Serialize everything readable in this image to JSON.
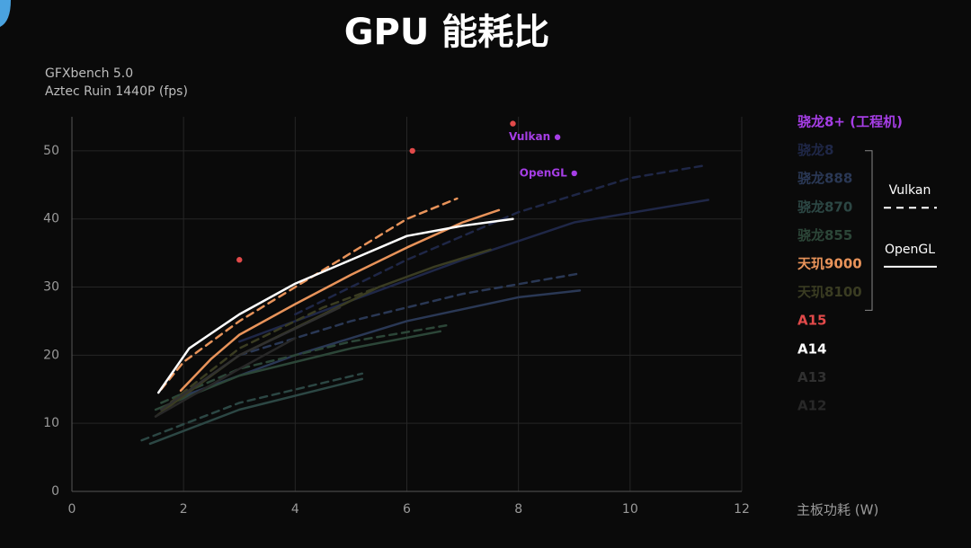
{
  "chart_data": {
    "type": "line",
    "title": "GPU 能耗比",
    "subtitle": [
      "GFXbench 5.0",
      "Aztec Ruin 1440P (fps)"
    ],
    "x_label": "主板功耗 (W)",
    "xlim": [
      0,
      12
    ],
    "xticks": [
      0,
      2,
      4,
      6,
      8,
      10,
      12
    ],
    "ylim": [
      0,
      55
    ],
    "yticks": [
      0,
      10,
      20,
      30,
      40,
      50
    ],
    "grid": true,
    "legend": "right",
    "line_styles": [
      {
        "label": "Vulkan",
        "style": "dashed"
      },
      {
        "label": "OpenGL",
        "style": "solid"
      }
    ],
    "series": [
      {
        "name": "骁龙8+ (工程机)",
        "color": "#a63ee6",
        "mode": "markers",
        "x": [
          8.7,
          9.0
        ],
        "values": [
          52,
          46.7
        ],
        "point_labels": [
          "Vulkan",
          "OpenGL"
        ]
      },
      {
        "name": "骁龙8",
        "color": "#1f2747",
        "mode": "lines",
        "lines": [
          {
            "style": "solid",
            "x": [
              3,
              5,
              7,
              9,
              11.4
            ],
            "values": [
              22,
              28,
              34,
              39.5,
              42.8
            ]
          },
          {
            "style": "dashed",
            "x": [
              4,
              6,
              8,
              10,
              11.3
            ],
            "values": [
              26,
              34,
              41,
              46,
              47.8
            ]
          }
        ]
      },
      {
        "name": "骁龙888",
        "color": "#2a3855",
        "mode": "lines",
        "lines": [
          {
            "style": "solid",
            "x": [
              2,
              4,
              6,
              8,
              9.1
            ],
            "values": [
              14,
              20,
              25,
              28.5,
              29.5
            ]
          },
          {
            "style": "dashed",
            "x": [
              3,
              5,
              7,
              9.1
            ],
            "values": [
              20,
              25,
              29,
              32
            ]
          }
        ]
      },
      {
        "name": "骁龙870",
        "color": "#2c4744",
        "mode": "lines",
        "lines": [
          {
            "style": "solid",
            "x": [
              1.4,
              3,
              5.2
            ],
            "values": [
              7,
              12,
              16.5
            ]
          },
          {
            "style": "dashed",
            "x": [
              1.25,
              3,
              5.2
            ],
            "values": [
              7.5,
              13,
              17.3
            ]
          }
        ]
      },
      {
        "name": "骁龙855",
        "color": "#2c4638",
        "mode": "lines",
        "lines": [
          {
            "style": "solid",
            "x": [
              1.5,
              3,
              5,
              6.6
            ],
            "values": [
              12,
              17,
              21,
              23.5
            ]
          },
          {
            "style": "dashed",
            "x": [
              1.6,
              3,
              5,
              6.8
            ],
            "values": [
              13,
              18,
              22,
              24.5
            ]
          }
        ]
      },
      {
        "name": "天玑9000",
        "color": "#e8935a",
        "mode": "lines",
        "lines": [
          {
            "style": "solid",
            "x": [
              1.95,
              2.5,
              3,
              4,
              5,
              6,
              7,
              7.65
            ],
            "values": [
              14.8,
              19.5,
              23,
              27.5,
              31.8,
              35.8,
              39.5,
              41.3
            ]
          },
          {
            "style": "dashed",
            "x": [
              1.6,
              2,
              3,
              4,
              5,
              6,
              6.9
            ],
            "values": [
              15,
              19,
              25,
              30,
              35,
              40,
              43
            ]
          }
        ]
      },
      {
        "name": "天玑8100",
        "color": "#3a3c22",
        "mode": "lines",
        "lines": [
          {
            "style": "solid",
            "x": [
              1.5,
              3,
              4.5,
              5.5,
              6.5,
              7.5
            ],
            "values": [
              11,
              20,
              26,
              30,
              33,
              35.5
            ]
          },
          {
            "style": "dashed",
            "x": [
              1.6,
              3,
              4.5,
              5.5
            ],
            "values": [
              12,
              21,
              27,
              30
            ]
          }
        ]
      },
      {
        "name": "A15",
        "color": "#e24a4a",
        "mode": "markers",
        "x": [
          3.0,
          6.1,
          7.9
        ],
        "values": [
          34,
          50,
          54
        ]
      },
      {
        "name": "A14",
        "color": "#ffffff",
        "mode": "lines",
        "lines": [
          {
            "style": "solid",
            "x": [
              1.55,
              2.1,
              3,
              4,
              5,
              6,
              7,
              7.9
            ],
            "values": [
              14.5,
              21,
              26,
              30.5,
              34,
              37.5,
              39,
              40
            ]
          }
        ]
      },
      {
        "name": "A13",
        "color": "#303030",
        "mode": "lines",
        "lines": [
          {
            "style": "solid",
            "x": [
              1.6,
              3,
              4.8
            ],
            "values": [
              12,
              20,
              27
            ]
          }
        ]
      },
      {
        "name": "A12",
        "color": "#282828",
        "mode": "lines",
        "lines": [
          {
            "style": "solid",
            "x": [
              1.5,
              3,
              4
            ],
            "values": [
              11,
              18,
              22.5
            ]
          }
        ]
      }
    ]
  }
}
